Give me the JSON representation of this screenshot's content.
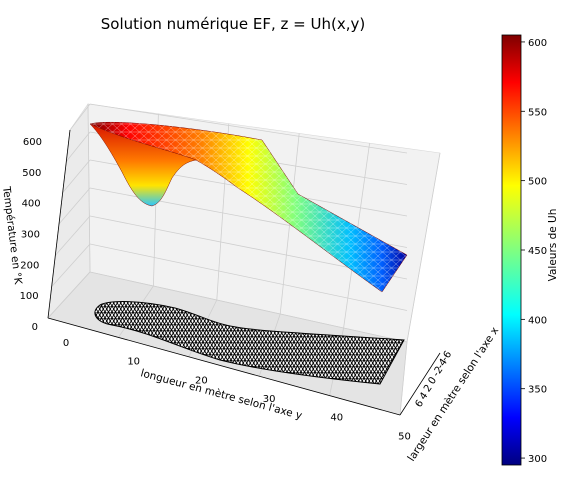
{
  "chart_data": {
    "type": "surface3d",
    "title": "Solution numérique EF, z = Uh(x,y)",
    "xlabel": "largeur en mètre selon l'axe x",
    "ylabel": "longueur en mètre selon l'axe y",
    "zlabel": "Température en °K",
    "colorbar_label": "Valeurs de Uh",
    "colormap": "jet",
    "y_ticks": [
      "0",
      "10",
      "20",
      "30",
      "40",
      "50"
    ],
    "x_ticks": [
      "6",
      "4",
      "2",
      "0",
      "-2",
      "-4",
      "-6"
    ],
    "z_ticks": [
      "0",
      "100",
      "200",
      "300",
      "400",
      "500",
      "600"
    ],
    "colorbar_ticks": [
      "300",
      "350",
      "400",
      "450",
      "500",
      "550",
      "600"
    ],
    "ylim": [
      0,
      52
    ],
    "zlim": [
      0,
      600
    ],
    "clim": [
      295,
      605
    ],
    "profile": {
      "y": [
        0,
        3,
        6,
        9,
        12,
        15,
        18,
        21,
        24,
        27,
        30,
        33,
        36,
        39,
        42,
        45,
        48,
        51
      ],
      "uh": [
        600,
        600,
        600,
        598,
        594,
        588,
        575,
        552,
        520,
        490,
        462,
        436,
        412,
        390,
        368,
        345,
        320,
        296
      ]
    },
    "dip": {
      "y": 8,
      "min_uh": 430
    },
    "grid": true,
    "mesh_projection": "triangular mesh (black) on z=0 plane"
  }
}
